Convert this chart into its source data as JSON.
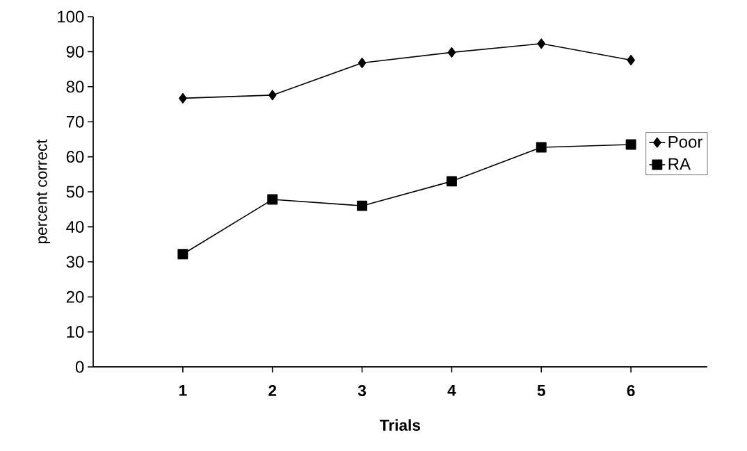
{
  "chart_data": {
    "type": "line",
    "xlabel": "Trials",
    "ylabel": "percent correct",
    "categories": [
      "1",
      "2",
      "3",
      "4",
      "5",
      "6"
    ],
    "series": [
      {
        "name": "Poor",
        "color": "#000000",
        "marker": "diamond",
        "values": [
          76.7,
          77.6,
          86.8,
          89.8,
          92.3,
          87.6
        ]
      },
      {
        "name": "RA",
        "color": "#000000",
        "marker": "square",
        "values": [
          32.2,
          47.8,
          46.0,
          53.0,
          62.7,
          63.5
        ]
      }
    ],
    "ylim": [
      0,
      100
    ],
    "yticks": [
      0,
      10,
      20,
      30,
      40,
      50,
      60,
      70,
      80,
      90,
      100
    ],
    "grid": false,
    "legend": "right",
    "line_style": "solid"
  }
}
